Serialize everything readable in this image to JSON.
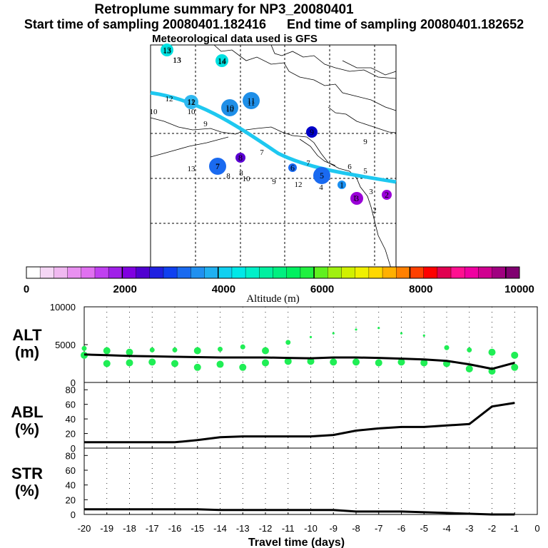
{
  "header": {
    "title": "Retroplume summary for NP3_20080401",
    "start": "Start time of sampling 20080401.182416",
    "end": "End time of sampling 20080401.182652",
    "met": "Meteorological data used is GFS"
  },
  "map": {
    "path_color": "#1ec8f0",
    "ticks": [
      "13",
      "13",
      "14",
      "12",
      "11",
      "10",
      "10",
      "11",
      "10",
      "9",
      "7",
      "8",
      "7",
      "8",
      "10",
      "9",
      "13",
      "12",
      "7",
      "6",
      "5",
      "4",
      "3",
      "2",
      "1",
      "9"
    ],
    "markers": [
      {
        "label": "13",
        "color": "#00e0e0"
      },
      {
        "label": "13",
        "color": "#ffffff"
      },
      {
        "label": "14",
        "color": "#00e0e0"
      },
      {
        "label": "12",
        "color": "#30b8f0"
      },
      {
        "label": "11",
        "color": "#1f8fe8"
      },
      {
        "label": "10",
        "color": "#1f8fe8"
      },
      {
        "label": "9",
        "color": "#0000c8"
      },
      {
        "label": "8",
        "color": "#5a00d2"
      },
      {
        "label": "7",
        "color": "#1a6af0"
      },
      {
        "label": "6",
        "color": "#1a6af0"
      },
      {
        "label": "5",
        "color": "#1a6af0"
      },
      {
        "label": "3",
        "color": "#9a00d8"
      },
      {
        "label": "2",
        "color": "#9a00d8"
      },
      {
        "label": "1",
        "color": "#1a8ff0"
      }
    ]
  },
  "colorbar": {
    "colors": [
      "#ffffff",
      "#f5d6f5",
      "#f0b8f0",
      "#e890f0",
      "#e070f0",
      "#c040f0",
      "#a020e8",
      "#8000e0",
      "#5000d0",
      "#2020e0",
      "#1040f0",
      "#1a6af0",
      "#2090f0",
      "#20b0f0",
      "#10d0f0",
      "#00e8e8",
      "#00f0c8",
      "#00f0a0",
      "#00f080",
      "#00f060",
      "#20f040",
      "#60f020",
      "#a0f010",
      "#d0f000",
      "#f0f000",
      "#ffd800",
      "#ffb000",
      "#ff8000",
      "#ff4000",
      "#ff0000",
      "#e00050",
      "#ff1090",
      "#f000a0",
      "#d00090",
      "#a00080",
      "#800070"
    ],
    "ticks": [
      "0",
      "2000",
      "4000",
      "6000",
      "8000",
      "10000"
    ],
    "label": "Altitude (m)"
  },
  "panels": {
    "alt": {
      "label_line1": "ALT",
      "label_line2": "(m)",
      "yticks": [
        "10000",
        "5000",
        "0"
      ]
    },
    "abl": {
      "label_line1": "ABL",
      "label_line2": "(%)",
      "yticks": [
        "80",
        "60",
        "40",
        "20",
        "0"
      ]
    },
    "str": {
      "label_line1": "STR",
      "label_line2": "(%)",
      "yticks": [
        "80",
        "60",
        "40",
        "20",
        "0"
      ]
    }
  },
  "xaxis": {
    "ticks": [
      "-20",
      "-19",
      "-18",
      "-17",
      "-16",
      "-15",
      "-14",
      "-13",
      "-12",
      "-11",
      "-10",
      "-9",
      "-8",
      "-7",
      "-6",
      "-5",
      "-4",
      "-3",
      "-2",
      "-1",
      "0"
    ],
    "label": "Travel time (days)"
  },
  "chart_data": [
    {
      "type": "line",
      "title": "ALT",
      "ylabel": "ALT (m)",
      "xlabel": "Travel time (days)",
      "xlim": [
        -20,
        0
      ],
      "ylim": [
        0,
        10000
      ],
      "x": [
        -20,
        -19,
        -18,
        -17,
        -16,
        -15,
        -14,
        -13,
        -12,
        -11,
        -10,
        -9,
        -8,
        -7,
        -6,
        -5,
        -4,
        -3,
        -2,
        -1
      ],
      "series": [
        {
          "name": "mean altitude",
          "values": [
            3700,
            3600,
            3500,
            3450,
            3400,
            3350,
            3300,
            3300,
            3300,
            3250,
            3200,
            3300,
            3300,
            3250,
            3150,
            3050,
            2850,
            2400,
            1800,
            2600
          ]
        }
      ],
      "points": [
        {
          "x": -20,
          "y": 4500
        },
        {
          "x": -20,
          "y": 3600
        },
        {
          "x": -19,
          "y": 4200
        },
        {
          "x": -19,
          "y": 2500
        },
        {
          "x": -18,
          "y": 4000
        },
        {
          "x": -18,
          "y": 2600
        },
        {
          "x": -17,
          "y": 4300
        },
        {
          "x": -17,
          "y": 2700
        },
        {
          "x": -16,
          "y": 4300
        },
        {
          "x": -16,
          "y": 2500
        },
        {
          "x": -15,
          "y": 4200
        },
        {
          "x": -15,
          "y": 2000
        },
        {
          "x": -14,
          "y": 4400
        },
        {
          "x": -14,
          "y": 2400
        },
        {
          "x": -13,
          "y": 4700
        },
        {
          "x": -13,
          "y": 2000
        },
        {
          "x": -12,
          "y": 4200
        },
        {
          "x": -12,
          "y": 2600
        },
        {
          "x": -11,
          "y": 5300
        },
        {
          "x": -11,
          "y": 2800
        },
        {
          "x": -10,
          "y": 6000
        },
        {
          "x": -10,
          "y": 2800
        },
        {
          "x": -9,
          "y": 6500
        },
        {
          "x": -9,
          "y": 2700
        },
        {
          "x": -8,
          "y": 7000
        },
        {
          "x": -8,
          "y": 2700
        },
        {
          "x": -7,
          "y": 7200
        },
        {
          "x": -7,
          "y": 2600
        },
        {
          "x": -6,
          "y": 6500
        },
        {
          "x": -6,
          "y": 2700
        },
        {
          "x": -5,
          "y": 6200
        },
        {
          "x": -5,
          "y": 2600
        },
        {
          "x": -4,
          "y": 4600
        },
        {
          "x": -4,
          "y": 2500
        },
        {
          "x": -3,
          "y": 4300
        },
        {
          "x": -3,
          "y": 1800
        },
        {
          "x": -2,
          "y": 4000
        },
        {
          "x": -2,
          "y": 1500
        },
        {
          "x": -1,
          "y": 3600
        },
        {
          "x": -1,
          "y": 2000
        }
      ]
    },
    {
      "type": "line",
      "title": "ABL",
      "ylabel": "ABL (%)",
      "xlim": [
        -20,
        0
      ],
      "ylim": [
        0,
        90
      ],
      "x": [
        -20,
        -19,
        -18,
        -17,
        -16,
        -15,
        -14,
        -13,
        -12,
        -11,
        -10,
        -9,
        -8,
        -7,
        -6,
        -5,
        -4,
        -3,
        -2,
        -1
      ],
      "series": [
        {
          "name": "ABL",
          "values": [
            8,
            8,
            8,
            8,
            8,
            11,
            15,
            16,
            16,
            16,
            16,
            18,
            24,
            27,
            29,
            29,
            31,
            33,
            57,
            62
          ]
        }
      ]
    },
    {
      "type": "line",
      "title": "STR",
      "ylabel": "STR (%)",
      "xlim": [
        -20,
        0
      ],
      "ylim": [
        0,
        90
      ],
      "x": [
        -20,
        -19,
        -18,
        -17,
        -16,
        -15,
        -14,
        -13,
        -12,
        -11,
        -10,
        -9,
        -8,
        -7,
        -6,
        -5,
        -4,
        -3,
        -2,
        -1
      ],
      "series": [
        {
          "name": "STR",
          "values": [
            7,
            7,
            7,
            7,
            7,
            7,
            6,
            6,
            6,
            6,
            6,
            6,
            4,
            4,
            4,
            3,
            2,
            1,
            0,
            0
          ]
        }
      ]
    }
  ]
}
